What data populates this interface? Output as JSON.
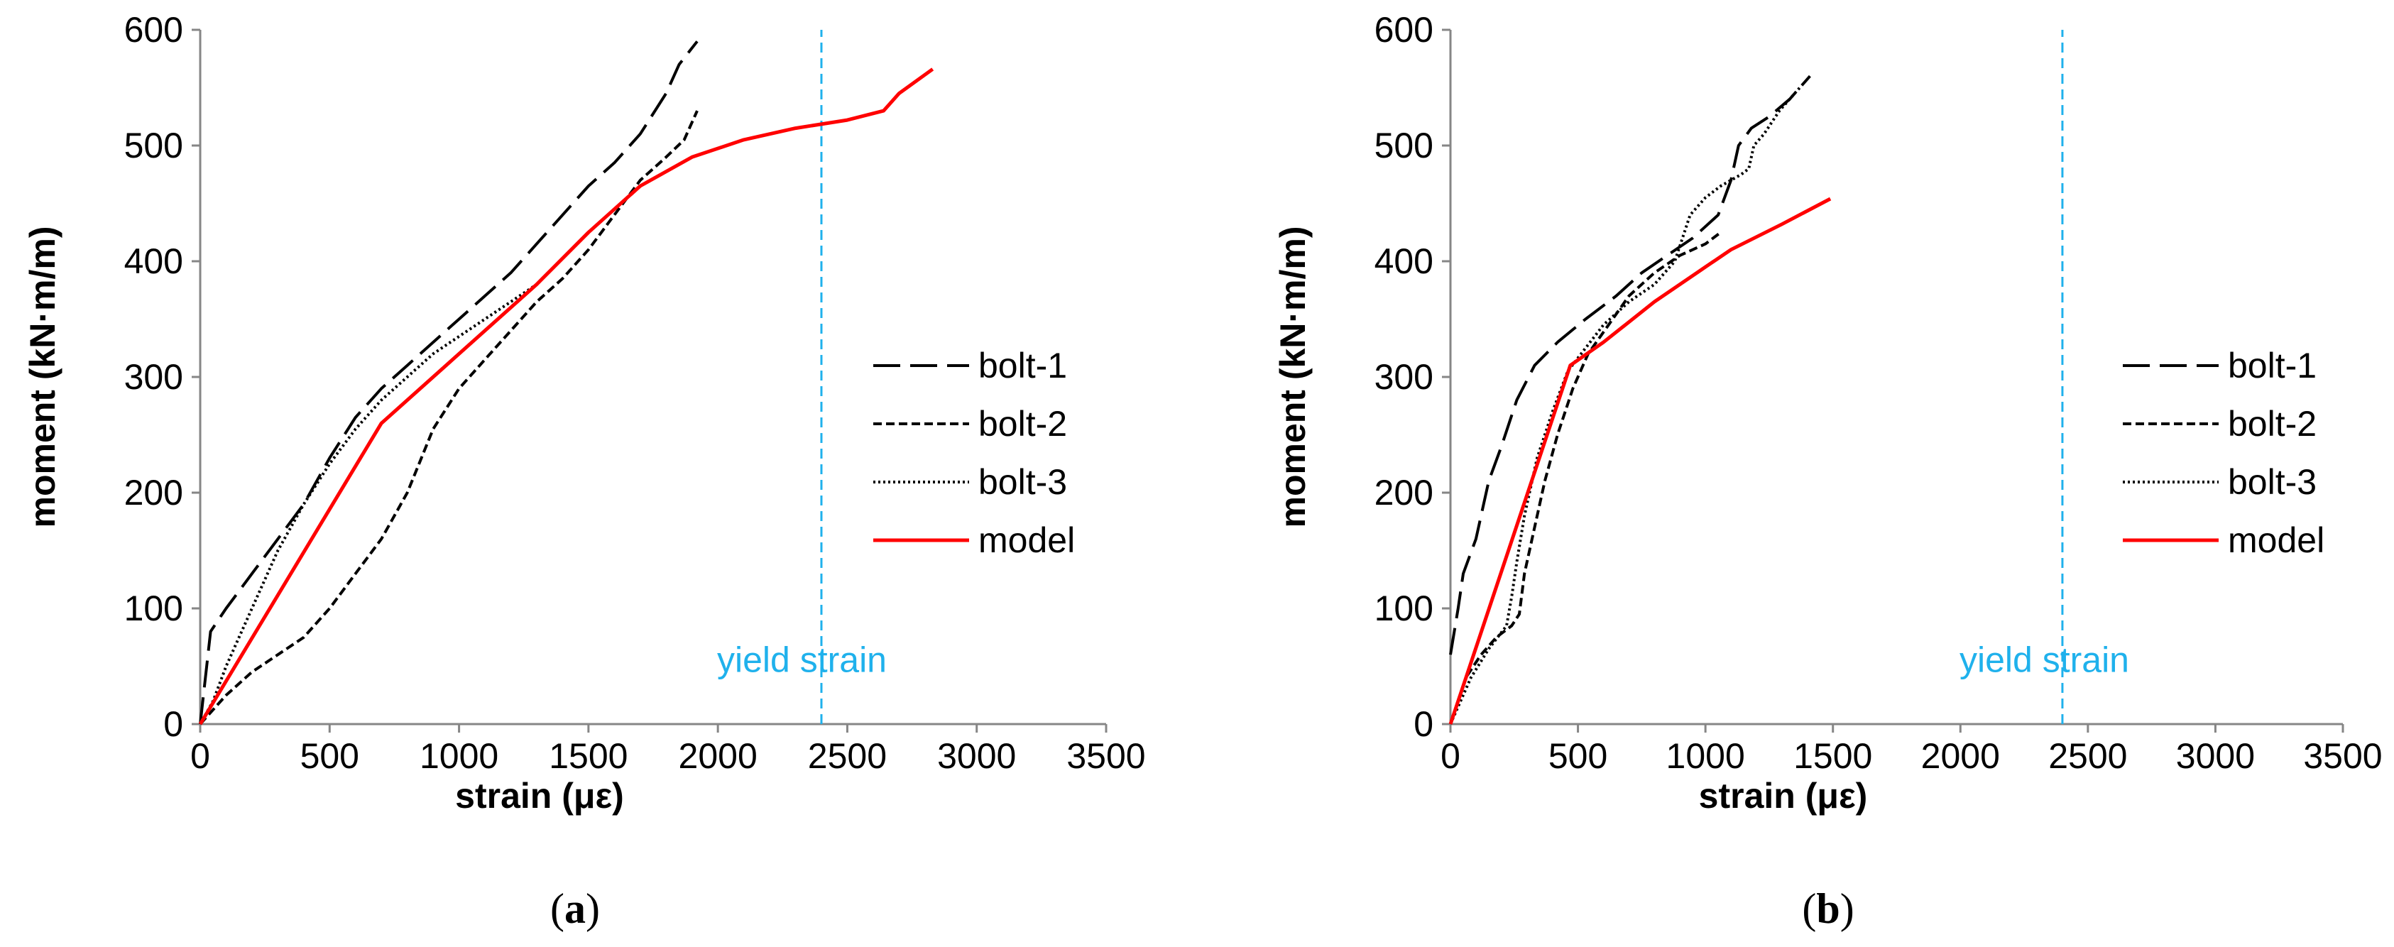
{
  "chart_data": [
    {
      "type": "line",
      "panel_caption": "a",
      "xlabel": "strain (με)",
      "ylabel": "moment (kN·m/m)",
      "xlim": [
        0,
        3500
      ],
      "ylim": [
        0,
        600
      ],
      "xticks": [
        0,
        500,
        1000,
        1500,
        2000,
        2500,
        3000,
        3500
      ],
      "yticks": [
        0,
        100,
        200,
        300,
        400,
        500,
        600
      ],
      "annotation": {
        "text": "yield strain",
        "x": 2400
      },
      "legend_position": "right",
      "series": [
        {
          "name": "bolt-1",
          "style": "long-dash",
          "color": "#000000",
          "points": [
            [
              0,
              0
            ],
            [
              20,
              40
            ],
            [
              40,
              80
            ],
            [
              100,
              100
            ],
            [
              200,
              130
            ],
            [
              300,
              160
            ],
            [
              400,
              190
            ],
            [
              500,
              230
            ],
            [
              600,
              265
            ],
            [
              700,
              290
            ],
            [
              800,
              310
            ],
            [
              900,
              330
            ],
            [
              1000,
              350
            ],
            [
              1100,
              370
            ],
            [
              1200,
              390
            ],
            [
              1300,
              415
            ],
            [
              1400,
              440
            ],
            [
              1500,
              465
            ],
            [
              1600,
              485
            ],
            [
              1700,
              510
            ],
            [
              1800,
              545
            ],
            [
              1850,
              570
            ],
            [
              1920,
              590
            ]
          ]
        },
        {
          "name": "bolt-2",
          "style": "short-dash",
          "color": "#000000",
          "points": [
            [
              0,
              0
            ],
            [
              100,
              25
            ],
            [
              200,
              45
            ],
            [
              300,
              60
            ],
            [
              400,
              75
            ],
            [
              500,
              100
            ],
            [
              600,
              130
            ],
            [
              700,
              160
            ],
            [
              800,
              200
            ],
            [
              900,
              255
            ],
            [
              1000,
              290
            ],
            [
              1100,
              315
            ],
            [
              1200,
              340
            ],
            [
              1300,
              365
            ],
            [
              1400,
              385
            ],
            [
              1500,
              410
            ],
            [
              1600,
              440
            ],
            [
              1700,
              470
            ],
            [
              1800,
              490
            ],
            [
              1870,
              505
            ],
            [
              1920,
              530
            ]
          ]
        },
        {
          "name": "bolt-3",
          "style": "dotted",
          "color": "#000000",
          "points": [
            [
              0,
              0
            ],
            [
              50,
              20
            ],
            [
              100,
              50
            ],
            [
              200,
              100
            ],
            [
              300,
              150
            ],
            [
              400,
              190
            ],
            [
              500,
              225
            ],
            [
              600,
              255
            ],
            [
              700,
              280
            ],
            [
              800,
              300
            ],
            [
              900,
              320
            ],
            [
              1000,
              335
            ],
            [
              1100,
              350
            ],
            [
              1200,
              365
            ],
            [
              1300,
              380
            ]
          ]
        },
        {
          "name": "model",
          "style": "solid",
          "color": "#ff0000",
          "points": [
            [
              0,
              0
            ],
            [
              700,
              260
            ],
            [
              1300,
              380
            ],
            [
              1500,
              425
            ],
            [
              1700,
              465
            ],
            [
              1900,
              490
            ],
            [
              2100,
              505
            ],
            [
              2300,
              515
            ],
            [
              2500,
              522
            ],
            [
              2640,
              530
            ],
            [
              2700,
              545
            ],
            [
              2830,
              566
            ]
          ]
        }
      ]
    },
    {
      "type": "line",
      "panel_caption": "b",
      "xlabel": "strain (με)",
      "ylabel": "moment (kN·m/m)",
      "xlim": [
        0,
        3500
      ],
      "ylim": [
        0,
        600
      ],
      "xticks": [
        0,
        500,
        1000,
        1500,
        2000,
        2500,
        3000,
        3500
      ],
      "yticks": [
        0,
        100,
        200,
        300,
        400,
        500,
        600
      ],
      "annotation": {
        "text": "yield strain",
        "x": 2400
      },
      "legend_position": "right",
      "series": [
        {
          "name": "bolt-1",
          "style": "long-dash",
          "color": "#000000",
          "points": [
            [
              0,
              60
            ],
            [
              30,
              100
            ],
            [
              50,
              130
            ],
            [
              100,
              160
            ],
            [
              150,
              210
            ],
            [
              200,
              240
            ],
            [
              260,
              280
            ],
            [
              330,
              310
            ],
            [
              420,
              330
            ],
            [
              530,
              350
            ],
            [
              650,
              370
            ],
            [
              750,
              390
            ],
            [
              850,
              405
            ],
            [
              950,
              420
            ],
            [
              1050,
              440
            ],
            [
              1100,
              470
            ],
            [
              1130,
              500
            ],
            [
              1180,
              515
            ],
            [
              1250,
              525
            ],
            [
              1330,
              540
            ],
            [
              1410,
              560
            ]
          ]
        },
        {
          "name": "bolt-2",
          "style": "short-dash",
          "color": "#000000",
          "points": [
            [
              0,
              0
            ],
            [
              60,
              40
            ],
            [
              120,
              60
            ],
            [
              180,
              75
            ],
            [
              240,
              85
            ],
            [
              270,
              95
            ],
            [
              290,
              130
            ],
            [
              330,
              170
            ],
            [
              370,
              210
            ],
            [
              420,
              250
            ],
            [
              480,
              290
            ],
            [
              540,
              320
            ],
            [
              620,
              345
            ],
            [
              700,
              370
            ],
            [
              800,
              390
            ],
            [
              900,
              405
            ],
            [
              1000,
              415
            ],
            [
              1060,
              425
            ]
          ]
        },
        {
          "name": "bolt-3",
          "style": "dotted",
          "color": "#000000",
          "points": [
            [
              0,
              0
            ],
            [
              80,
              40
            ],
            [
              150,
              65
            ],
            [
              220,
              85
            ],
            [
              240,
              110
            ],
            [
              260,
              140
            ],
            [
              290,
              180
            ],
            [
              340,
              230
            ],
            [
              400,
              270
            ],
            [
              460,
              305
            ],
            [
              530,
              325
            ],
            [
              600,
              345
            ],
            [
              700,
              365
            ],
            [
              800,
              380
            ],
            [
              880,
              400
            ],
            [
              940,
              440
            ],
            [
              1000,
              455
            ],
            [
              1060,
              465
            ],
            [
              1140,
              475
            ],
            [
              1170,
              480
            ],
            [
              1190,
              500
            ],
            [
              1230,
              510
            ],
            [
              1290,
              530
            ],
            [
              1370,
              550
            ]
          ]
        },
        {
          "name": "model",
          "style": "solid",
          "color": "#ff0000",
          "points": [
            [
              0,
              0
            ],
            [
              470,
              310
            ],
            [
              600,
              330
            ],
            [
              800,
              365
            ],
            [
              1000,
              395
            ],
            [
              1100,
              410
            ],
            [
              1300,
              432
            ],
            [
              1490,
              454
            ]
          ]
        }
      ]
    }
  ]
}
